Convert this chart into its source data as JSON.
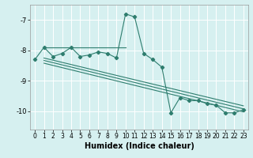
{
  "title": "",
  "xlabel": "Humidex (Indice chaleur)",
  "bg_color": "#d6f0f0",
  "grid_color": "#ffffff",
  "line_color": "#2e7d6e",
  "xlim": [
    -0.5,
    23.5
  ],
  "ylim": [
    -10.6,
    -6.5
  ],
  "xticks": [
    0,
    1,
    2,
    3,
    4,
    5,
    6,
    7,
    8,
    9,
    10,
    11,
    12,
    13,
    14,
    15,
    16,
    17,
    18,
    19,
    20,
    21,
    22,
    23
  ],
  "yticks": [
    -10,
    -9,
    -8,
    -7
  ],
  "series": [
    [
      0,
      -8.3
    ],
    [
      1,
      -7.9
    ],
    [
      2,
      -8.2
    ],
    [
      3,
      -8.1
    ],
    [
      4,
      -7.9
    ],
    [
      5,
      -8.2
    ],
    [
      6,
      -8.15
    ],
    [
      7,
      -8.05
    ],
    [
      8,
      -8.1
    ],
    [
      9,
      -8.25
    ],
    [
      10,
      -6.8
    ],
    [
      11,
      -6.9
    ],
    [
      12,
      -8.1
    ],
    [
      13,
      -8.3
    ],
    [
      14,
      -8.55
    ],
    [
      15,
      -10.05
    ],
    [
      16,
      -9.55
    ],
    [
      17,
      -9.65
    ],
    [
      18,
      -9.65
    ],
    [
      19,
      -9.75
    ],
    [
      20,
      -9.8
    ],
    [
      21,
      -10.05
    ],
    [
      22,
      -10.05
    ],
    [
      23,
      -9.95
    ]
  ],
  "flat_line": [
    [
      1,
      -7.9
    ],
    [
      10,
      -7.9
    ]
  ],
  "regression_lines": [
    [
      [
        1,
        -8.25
      ],
      [
        23,
        -9.82
      ]
    ],
    [
      [
        1,
        -8.42
      ],
      [
        23,
        -10.02
      ]
    ],
    [
      [
        1,
        -8.33
      ],
      [
        23,
        -9.92
      ]
    ]
  ],
  "xlabel_fontsize": 7,
  "tick_fontsize": 5.5
}
